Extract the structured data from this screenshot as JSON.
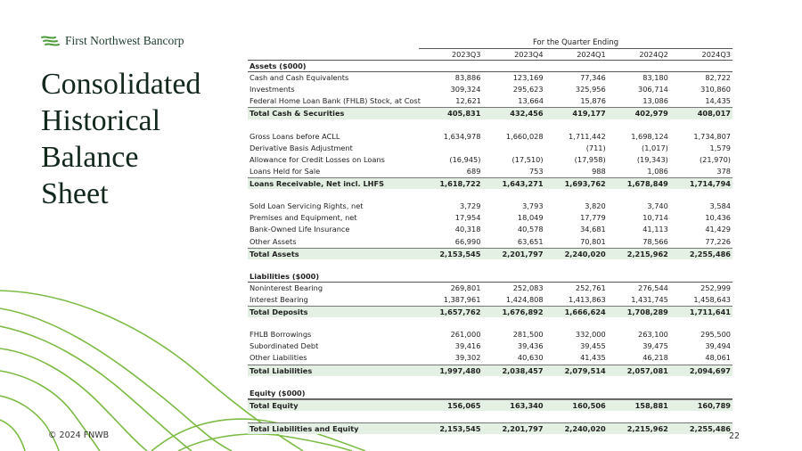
{
  "logo": "First Northwest Bancorp",
  "title_lines": [
    "Consolidated",
    "Historical",
    "Balance",
    "Sheet"
  ],
  "footer": "© 2024 FNWB",
  "page_number": "22",
  "table": {
    "caption": "For the Quarter Ending",
    "columns": [
      "2023Q3",
      "2023Q4",
      "2024Q1",
      "2024Q2",
      "2024Q3"
    ],
    "groups": [
      {
        "heading": "Assets ($000)",
        "rows": [
          {
            "label": "Cash and Cash Equivalents",
            "values": [
              "83,886",
              "123,169",
              "77,346",
              "83,180",
              "82,722"
            ]
          },
          {
            "label": "Investments",
            "values": [
              "309,324",
              "295,623",
              "325,956",
              "306,714",
              "310,860"
            ]
          },
          {
            "label": "Federal Home Loan Bank (FHLB) Stock, at Cost",
            "values": [
              "12,621",
              "13,664",
              "15,876",
              "13,086",
              "14,435"
            ]
          }
        ],
        "total": {
          "label": "Total Cash & Securities",
          "values": [
            "405,831",
            "432,456",
            "419,177",
            "402,979",
            "408,017"
          ]
        }
      },
      {
        "rows": [
          {
            "label": "Gross Loans before ACLL",
            "values": [
              "1,634,978",
              "1,660,028",
              "1,711,442",
              "1,698,124",
              "1,734,807"
            ]
          },
          {
            "label": "Derivative Basis Adjustment",
            "values": [
              null,
              null,
              "(711)",
              "(1,017)",
              "1,579"
            ]
          },
          {
            "label": "Allowance for Credit Losses on Loans",
            "values": [
              "(16,945)",
              "(17,510)",
              "(17,958)",
              "(19,343)",
              "(21,970)"
            ]
          },
          {
            "label": "Loans Held for Sale",
            "values": [
              "689",
              "753",
              "988",
              "1,086",
              "378"
            ]
          }
        ],
        "total": {
          "label": "Loans Receivable, Net incl. LHFS",
          "values": [
            "1,618,722",
            "1,643,271",
            "1,693,762",
            "1,678,849",
            "1,714,794"
          ]
        }
      },
      {
        "rows": [
          {
            "label": "Sold Loan Servicing Rights, net",
            "values": [
              "3,729",
              "3,793",
              "3,820",
              "3,740",
              "3,584"
            ]
          },
          {
            "label": "Premises and Equipment, net",
            "values": [
              "17,954",
              "18,049",
              "17,779",
              "10,714",
              "10,436"
            ]
          },
          {
            "label": "Bank-Owned Life Insurance",
            "values": [
              "40,318",
              "40,578",
              "34,681",
              "41,113",
              "41,429"
            ]
          },
          {
            "label": "Other Assets",
            "values": [
              "66,990",
              "63,651",
              "70,801",
              "78,566",
              "77,226"
            ]
          }
        ],
        "total": {
          "label": "Total Assets",
          "values": [
            "2,153,545",
            "2,201,797",
            "2,240,020",
            "2,215,962",
            "2,255,486"
          ]
        }
      },
      {
        "heading": "Liabilities ($000)",
        "rows": [
          {
            "label": "Noninterest Bearing",
            "values": [
              "269,801",
              "252,083",
              "252,761",
              "276,544",
              "252,999"
            ]
          },
          {
            "label": "Interest Bearing",
            "values": [
              "1,387,961",
              "1,424,808",
              "1,413,863",
              "1,431,745",
              "1,458,643"
            ]
          }
        ],
        "total": {
          "label": "Total Deposits",
          "values": [
            "1,657,762",
            "1,676,892",
            "1,666,624",
            "1,708,289",
            "1,711,641"
          ]
        }
      },
      {
        "rows": [
          {
            "label": "FHLB Borrowings",
            "values": [
              "261,000",
              "281,500",
              "332,000",
              "263,100",
              "295,500"
            ]
          },
          {
            "label": "Subordinated Debt",
            "values": [
              "39,416",
              "39,436",
              "39,455",
              "39,475",
              "39,494"
            ]
          },
          {
            "label": "Other Liabilities",
            "values": [
              "39,302",
              "40,630",
              "41,435",
              "46,218",
              "48,061"
            ]
          }
        ],
        "total": {
          "label": "Total Liabilities",
          "values": [
            "1,997,480",
            "2,038,457",
            "2,079,514",
            "2,057,081",
            "2,094,697"
          ]
        }
      },
      {
        "heading": "Equity ($000)",
        "rows": [],
        "total": {
          "label": "Total Equity",
          "values": [
            "156,065",
            "163,340",
            "160,506",
            "158,881",
            "160,789"
          ]
        }
      },
      {
        "rows": [],
        "total": {
          "label": "Total Liabilities and Equity",
          "values": [
            "2,153,545",
            "2,201,797",
            "2,240,020",
            "2,215,962",
            "2,255,486"
          ]
        }
      }
    ]
  }
}
